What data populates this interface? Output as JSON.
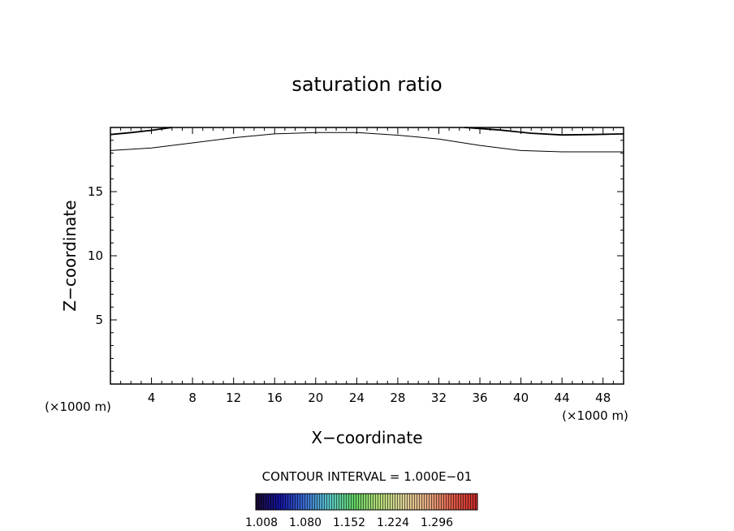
{
  "chart_data": {
    "type": "contour",
    "title": "saturation ratio",
    "xlabel": "X−coordinate",
    "ylabel": "Z−coordinate",
    "x_unit_left": "(×1000 m)",
    "x_unit_right": "(×1000 m)",
    "xlim": [
      0,
      50
    ],
    "ylim": [
      0,
      20
    ],
    "x_ticks": [
      "4",
      "8",
      "12",
      "16",
      "20",
      "24",
      "28",
      "32",
      "36",
      "40",
      "44",
      "48"
    ],
    "y_ticks": [
      "5",
      "10",
      "15"
    ],
    "contour_interval": "CONTOUR INTERVAL = 1.000E−01",
    "contours": [
      {
        "name": "lower-contour",
        "points": [
          [
            0,
            18.2
          ],
          [
            4,
            18.4
          ],
          [
            8,
            18.8
          ],
          [
            12,
            19.2
          ],
          [
            16,
            19.5
          ],
          [
            20,
            19.6
          ],
          [
            24,
            19.6
          ],
          [
            28,
            19.4
          ],
          [
            32,
            19.1
          ],
          [
            36,
            18.6
          ],
          [
            40,
            18.2
          ],
          [
            44,
            18.1
          ],
          [
            48,
            18.1
          ],
          [
            50,
            18.1
          ]
        ]
      },
      {
        "name": "upper-contour-left",
        "points": [
          [
            0,
            19.45
          ],
          [
            2,
            19.6
          ],
          [
            4,
            19.78
          ],
          [
            6,
            20.0
          ]
        ]
      },
      {
        "name": "upper-contour-right",
        "points": [
          [
            34.5,
            20.0
          ],
          [
            38,
            19.8
          ],
          [
            41,
            19.55
          ],
          [
            44,
            19.42
          ],
          [
            47,
            19.45
          ],
          [
            50,
            19.5
          ]
        ]
      }
    ],
    "colorbar": {
      "labels": [
        "1.008",
        "1.080",
        "1.152",
        "1.224",
        "1.296"
      ],
      "colors": [
        "#1a0a2e",
        "#1414a0",
        "#3c6ed2",
        "#5ac8c8",
        "#64d264",
        "#b4dc78",
        "#dcd296",
        "#e6aa82",
        "#dc5a46",
        "#c82828"
      ]
    }
  }
}
